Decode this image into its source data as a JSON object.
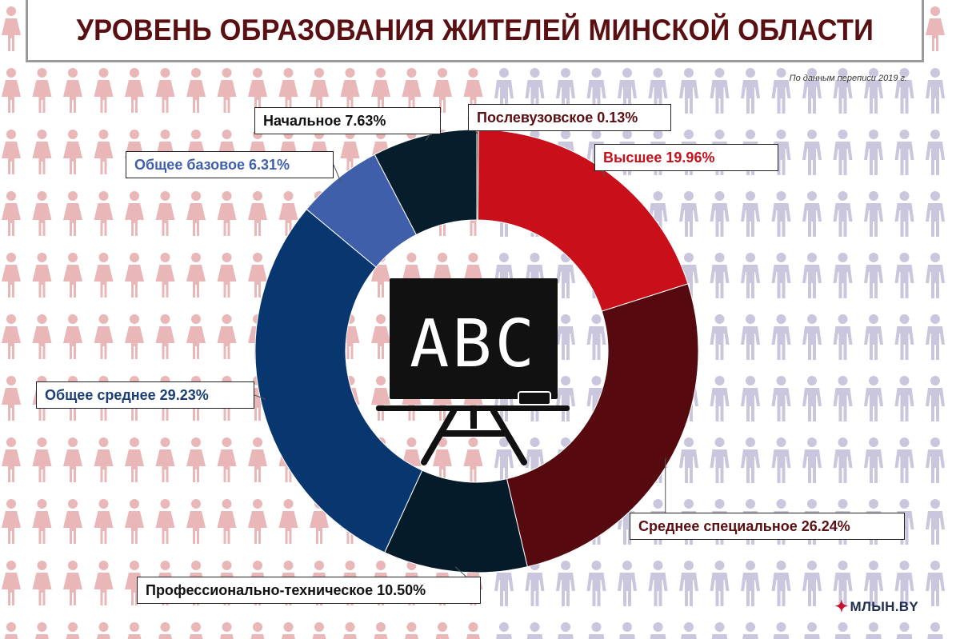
{
  "title": "УРОВЕНЬ ОБРАЗОВАНИЯ ЖИТЕЛЕЙ МИНСКОЙ ОБЛАСТИ",
  "source": "По данным переписи 2019 г.",
  "logo": {
    "mark": "✦",
    "text": "МЛЫН.BY"
  },
  "board": {
    "text": "ABC"
  },
  "colors": {
    "female_icon": "#e9b7b7",
    "male_icon": "#c9c6dd",
    "title_text": "#5a0f12"
  },
  "chart_data": {
    "type": "pie",
    "donut": true,
    "title": "УРОВЕНЬ ОБРАЗОВАНИЯ ЖИТЕЛЕЙ МИНСКОЙ ОБЛАСТИ",
    "slices": [
      {
        "name": "Послевузовское",
        "value": 0.13,
        "label": "Послевузовское 0.13%",
        "color": "#4a2a2a",
        "text_color": "#5a0f12"
      },
      {
        "name": "Высшее",
        "value": 19.96,
        "label": "Высшее 19.96%",
        "color": "#c9101a",
        "text_color": "#c9101a"
      },
      {
        "name": "Среднее специальное",
        "value": 26.24,
        "label": "Среднее специальное 26.24%",
        "color": "#560a0f",
        "text_color": "#5a0f12"
      },
      {
        "name": "Профессионально-техническое",
        "value": 10.5,
        "label": "Профессионально-техническое 10.50%",
        "color": "#051b2a",
        "text_color": "#111111"
      },
      {
        "name": "Общее среднее",
        "value": 29.23,
        "label": "Общее среднее 29.23%",
        "color": "#08366f",
        "text_color": "#1b3f75"
      },
      {
        "name": "Общее базовое",
        "value": 6.31,
        "label": "Общее базовое 6.31%",
        "color": "#3f5faa",
        "text_color": "#3f5faa"
      },
      {
        "name": "Начальное",
        "value": 7.63,
        "label": "Начальное 7.63%",
        "color": "#061d2c",
        "text_color": "#111111"
      }
    ]
  }
}
